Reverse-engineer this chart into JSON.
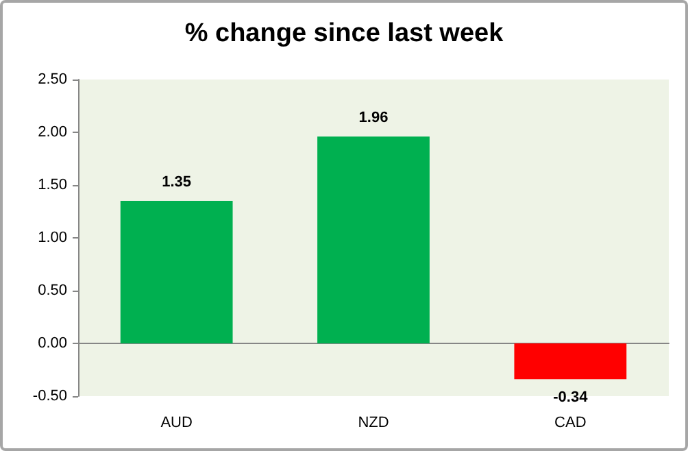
{
  "chart_data": {
    "type": "bar",
    "title": "% change since last week",
    "categories": [
      "AUD",
      "NZD",
      "CAD"
    ],
    "values": [
      1.35,
      1.96,
      -0.34
    ],
    "colors": [
      "#00b050",
      "#00b050",
      "#ff0000"
    ],
    "ylim": [
      -0.5,
      2.5
    ],
    "yticks": [
      {
        "value": -0.5,
        "label": "-0.50"
      },
      {
        "value": 0,
        "label": "0.00"
      },
      {
        "value": 0.5,
        "label": "0.50"
      },
      {
        "value": 1,
        "label": "1.00"
      },
      {
        "value": 1.5,
        "label": "1.50"
      },
      {
        "value": 2,
        "label": "2.00"
      },
      {
        "value": 2.5,
        "label": "2.50"
      }
    ],
    "data_labels": true
  }
}
